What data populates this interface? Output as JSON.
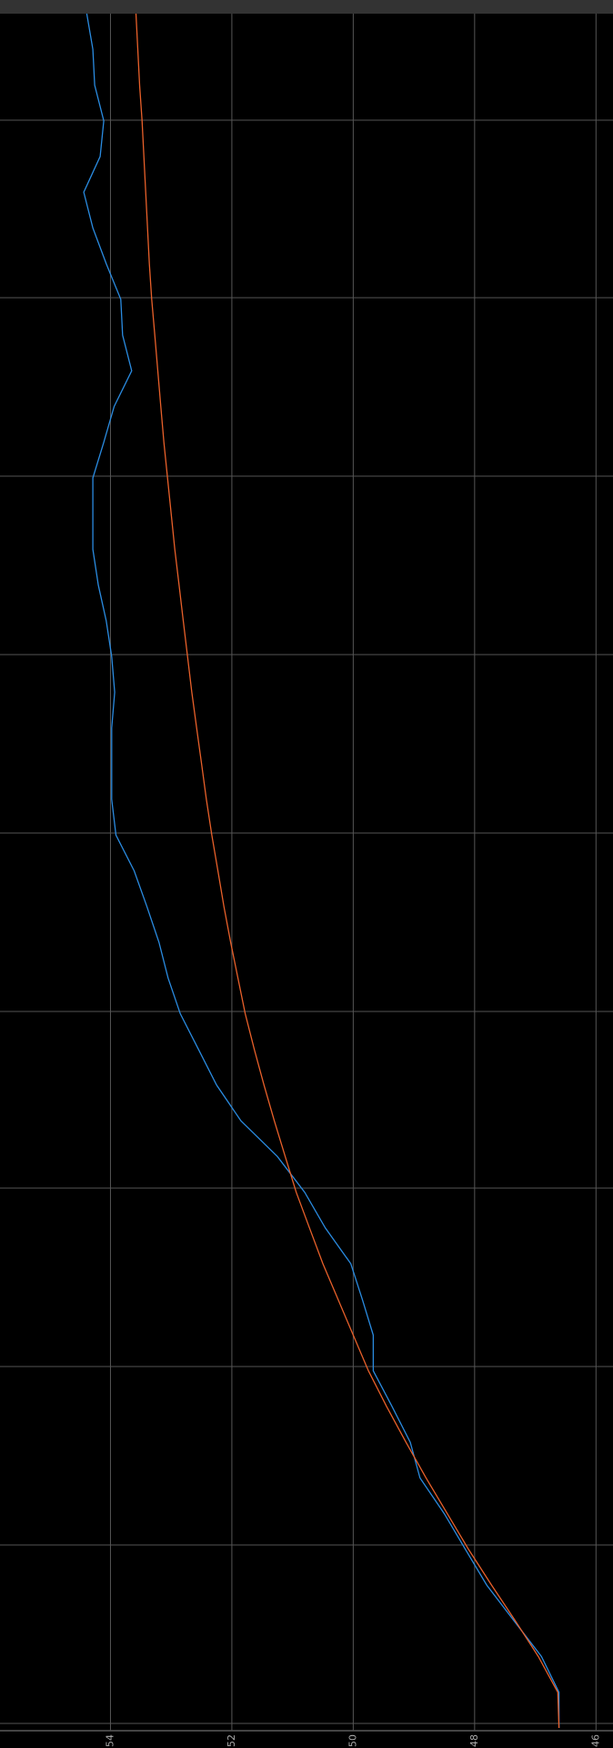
{
  "chart_data": {
    "type": "line",
    "orientation": "vertical",
    "xlim": [
      55.82,
      45.72
    ],
    "xticks": [
      54,
      52,
      50,
      48,
      46
    ],
    "grid": true,
    "series": [
      {
        "color": "#2a8be0",
        "values": [
          54.39,
          54.29,
          54.26,
          54.11,
          54.17,
          54.44,
          54.29,
          54.07,
          53.83,
          53.8,
          53.65,
          53.94,
          54.11,
          54.29,
          54.29,
          54.29,
          54.2,
          54.07,
          53.98,
          53.93,
          53.98,
          53.98,
          53.98,
          53.91,
          53.61,
          53.4,
          53.2,
          53.05,
          52.85,
          52.55,
          52.25,
          51.85,
          51.25,
          50.8,
          50.46,
          50.04,
          49.85,
          49.67,
          49.67,
          49.36,
          49.06,
          48.9,
          48.5,
          48.15,
          47.8,
          47.35,
          46.9,
          46.61,
          46.61
        ]
      },
      {
        "color": "#e8602a",
        "values": [
          53.58,
          53.55,
          53.52,
          53.48,
          53.45,
          53.42,
          53.39,
          53.36,
          53.32,
          53.27,
          53.22,
          53.17,
          53.12,
          53.06,
          53.0,
          52.94,
          52.87,
          52.8,
          52.73,
          52.66,
          52.58,
          52.5,
          52.42,
          52.33,
          52.23,
          52.13,
          52.02,
          51.9,
          51.78,
          51.63,
          51.47,
          51.3,
          51.12,
          50.94,
          50.72,
          50.5,
          50.25,
          50.0,
          49.75,
          49.45,
          49.13,
          48.8,
          48.45,
          48.1,
          47.72,
          47.33,
          46.95,
          46.63,
          46.61
        ]
      }
    ]
  }
}
